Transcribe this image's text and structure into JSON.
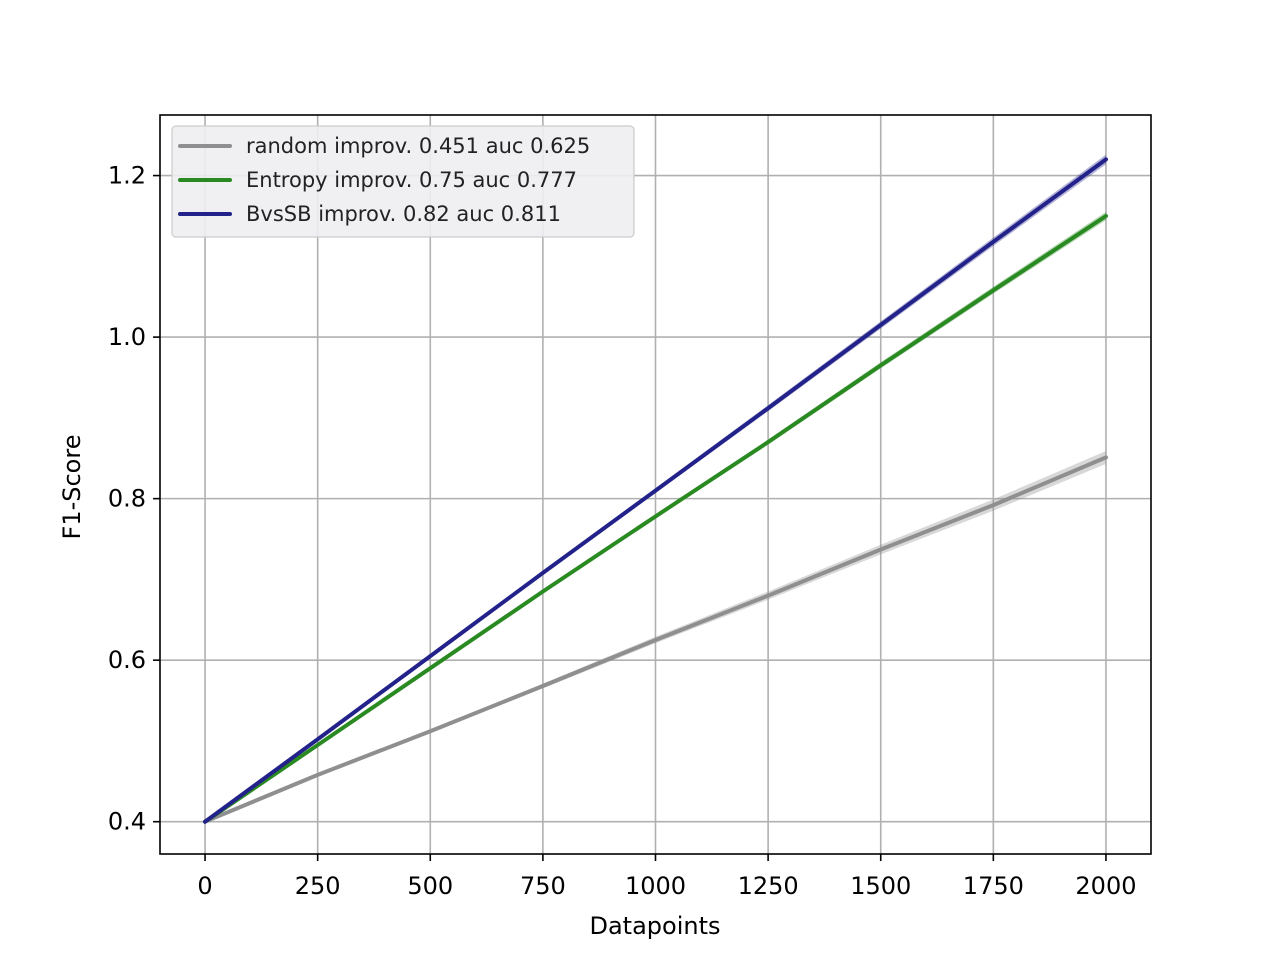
{
  "chart_data": {
    "type": "line",
    "title": "",
    "xlabel": "Datapoints",
    "ylabel": "F1-Score",
    "xlim": [
      -100,
      2100
    ],
    "ylim": [
      0.36,
      1.275
    ],
    "xticks": [
      0,
      250,
      500,
      750,
      1000,
      1250,
      1500,
      1750,
      2000
    ],
    "xtick_labels": [
      "0",
      "250",
      "500",
      "750",
      "1000",
      "1250",
      "1500",
      "1750",
      "2000"
    ],
    "yticks": [
      0.4,
      0.6,
      0.8,
      1.0,
      1.2
    ],
    "ytick_labels": [
      "0.4",
      "0.6",
      "0.8",
      "1.0",
      "1.2"
    ],
    "grid": true,
    "legend_position": "top-left",
    "series": [
      {
        "name": "random improv. 0.451 auc 0.625",
        "color": "#8f8f8f",
        "x": [
          0,
          250,
          500,
          750,
          1000,
          1250,
          1500,
          1750,
          2000
        ],
        "values": [
          0.4,
          0.458,
          0.512,
          0.568,
          0.625,
          0.68,
          0.737,
          0.792,
          0.851
        ],
        "band": 0.008
      },
      {
        "name": "Entropy improv. 0.75 auc 0.777",
        "color": "#2a8a22",
        "x": [
          0,
          250,
          500,
          750,
          1000,
          1250,
          1500,
          1750,
          2000
        ],
        "values": [
          0.4,
          0.495,
          0.59,
          0.685,
          0.778,
          0.87,
          0.965,
          1.058,
          1.15
        ],
        "band": 0.005
      },
      {
        "name": "BvsSB improv. 0.82 auc 0.811",
        "color": "#22228a",
        "x": [
          0,
          250,
          500,
          750,
          1000,
          1250,
          1500,
          1750,
          2000
        ],
        "values": [
          0.4,
          0.502,
          0.605,
          0.708,
          0.81,
          0.912,
          1.015,
          1.118,
          1.22
        ],
        "band": 0.006
      }
    ]
  }
}
